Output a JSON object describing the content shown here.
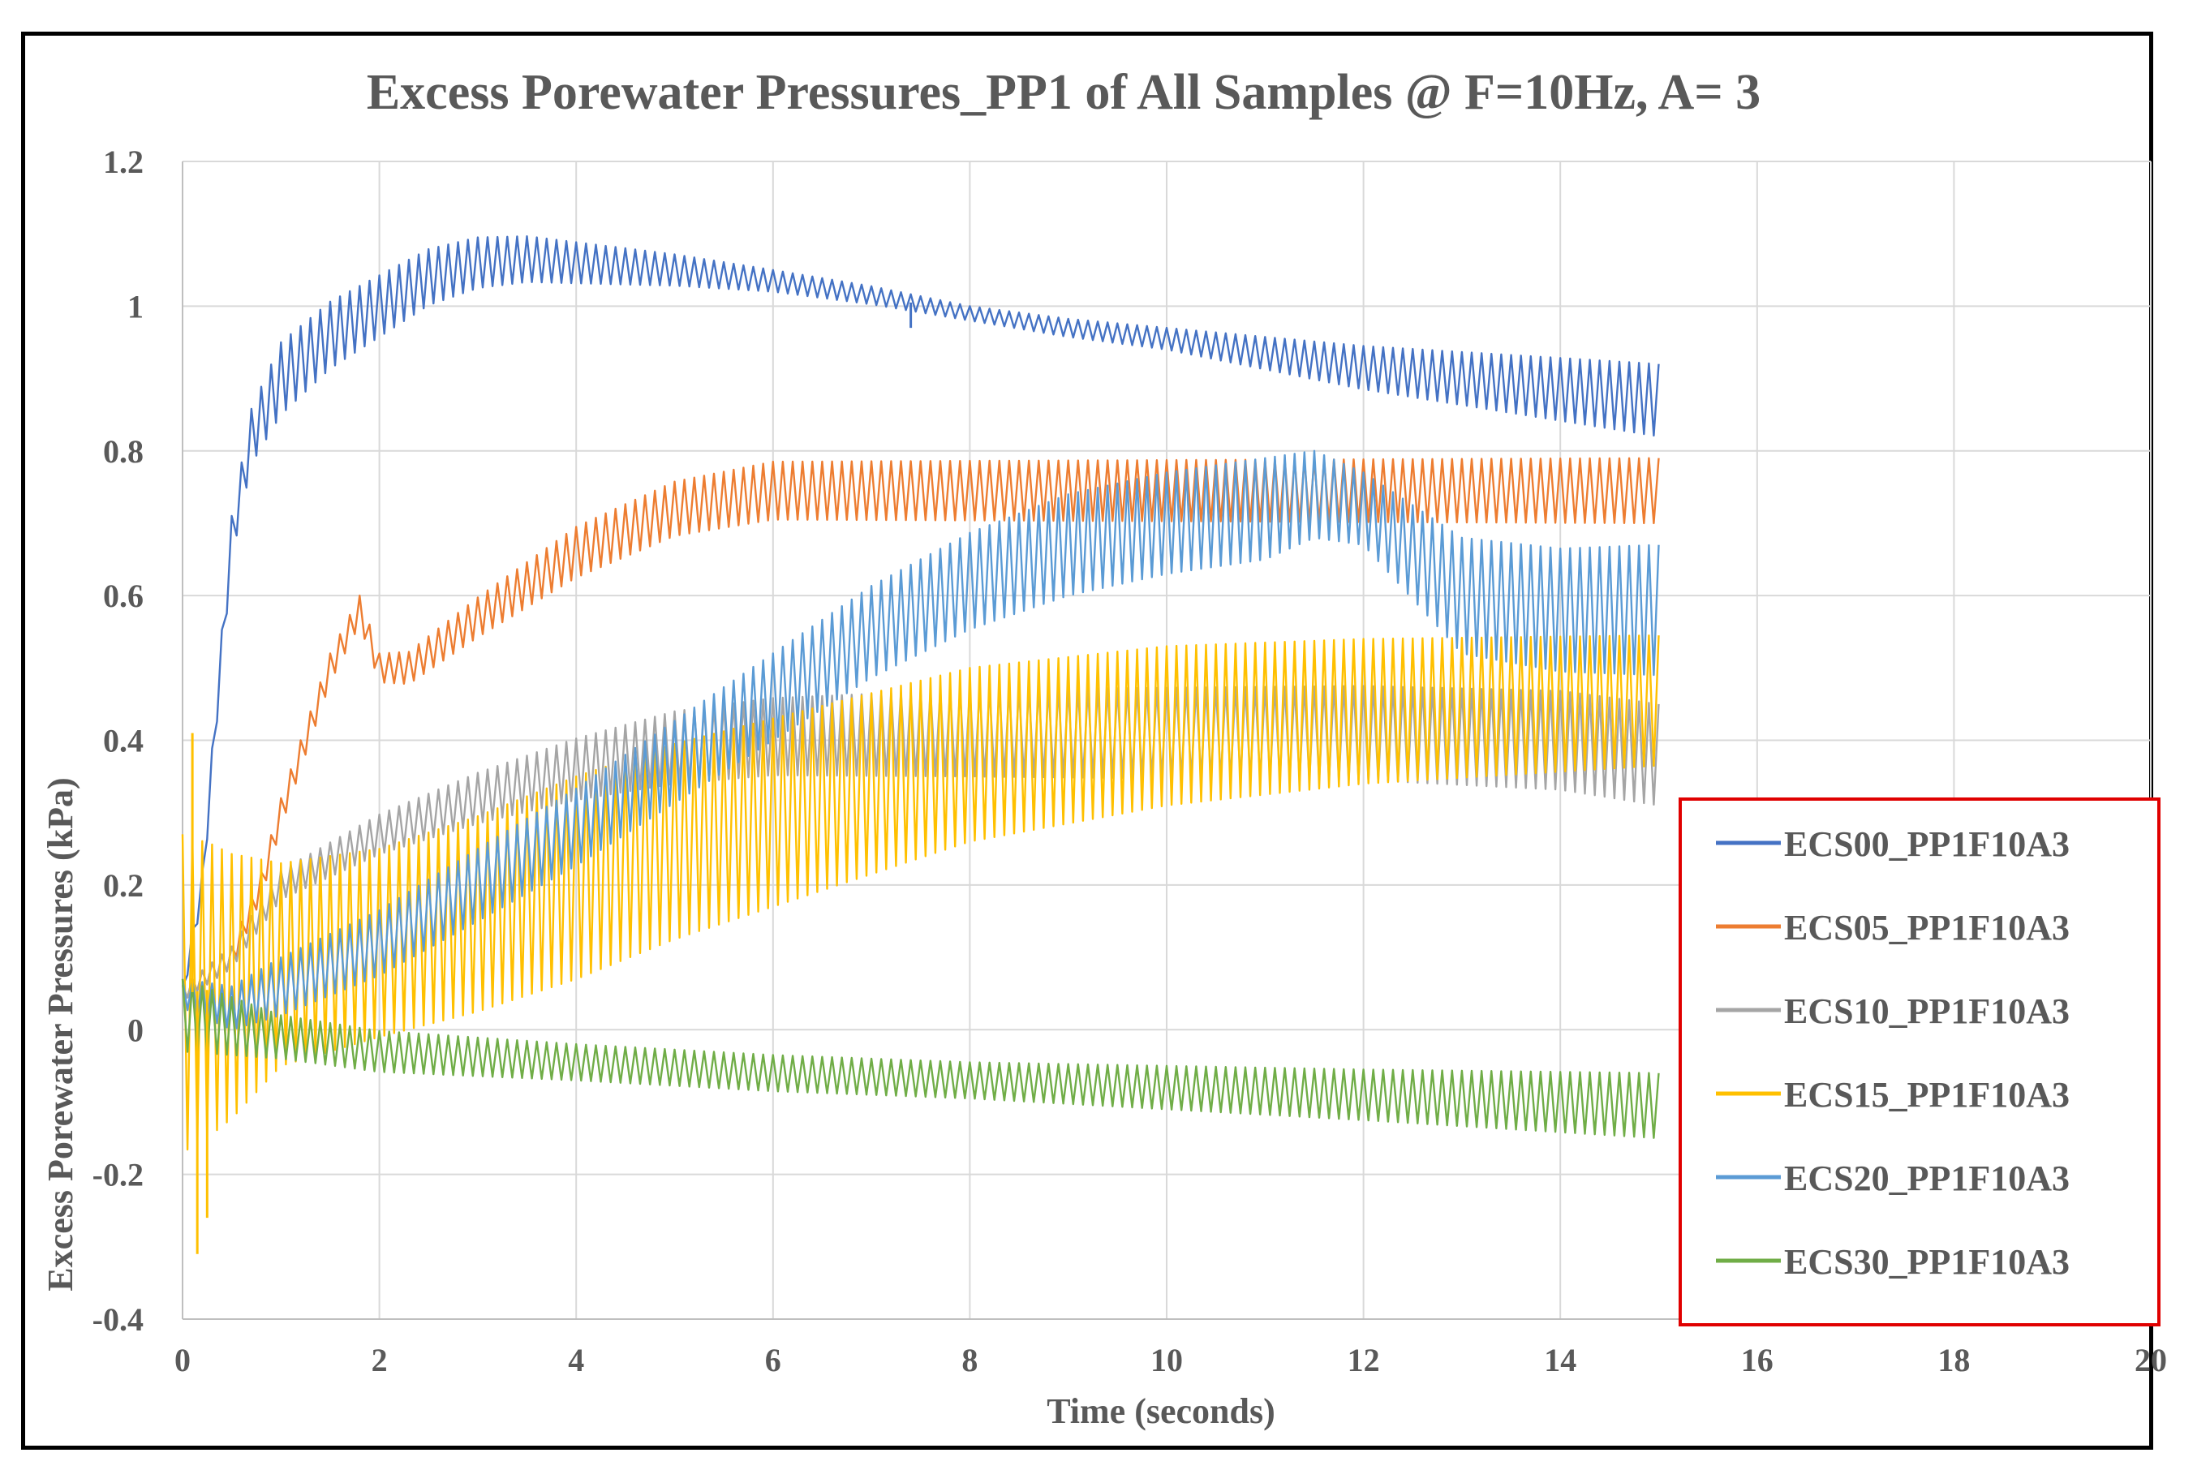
{
  "chart_data": {
    "type": "line",
    "title": "Excess Porewater Pressures_PP1 of All Samples @ F=10Hz, A= 3",
    "xlabel": "Time (seconds)",
    "ylabel": "Excess Porewater Pressures (kPa)",
    "xlim": [
      0,
      20
    ],
    "ylim": [
      -0.4,
      1.2
    ],
    "x_ticks": [
      0,
      2,
      4,
      6,
      8,
      10,
      12,
      14,
      16,
      18,
      20
    ],
    "y_ticks": [
      1.2,
      1,
      0.8,
      0.6,
      0.4,
      0.2,
      0,
      -0.2,
      -0.4
    ],
    "y_tick_labels": [
      "1.2",
      "1",
      "0.8",
      "0.6",
      "0.4",
      "0.2",
      "0",
      "-0.2",
      "-0.4"
    ],
    "grid": true,
    "legend_position": "bottom-right",
    "legend_box_color": "#e00000",
    "series": [
      {
        "name": "ECS00_PP1F10A3",
        "color": "#4472c4",
        "center": [
          [
            0,
            0.05
          ],
          [
            0.2,
            0.2
          ],
          [
            0.35,
            0.45
          ],
          [
            0.5,
            0.68
          ],
          [
            0.7,
            0.82
          ],
          [
            1,
            0.9
          ],
          [
            1.5,
            0.96
          ],
          [
            2,
            1.0
          ],
          [
            2.5,
            1.04
          ],
          [
            3,
            1.06
          ],
          [
            3.5,
            1.065
          ],
          [
            4,
            1.06
          ],
          [
            5,
            1.05
          ],
          [
            6,
            1.035
          ],
          [
            7,
            1.015
          ],
          [
            8,
            0.99
          ],
          [
            9,
            0.97
          ],
          [
            10,
            0.955
          ],
          [
            11,
            0.935
          ],
          [
            12,
            0.915
          ],
          [
            13,
            0.9
          ],
          [
            14,
            0.885
          ],
          [
            15,
            0.87
          ]
        ],
        "amplitude": [
          [
            0,
            0.01
          ],
          [
            0.5,
            0.03
          ],
          [
            1,
            0.05
          ],
          [
            3,
            0.035
          ],
          [
            6,
            0.015
          ],
          [
            8,
            0.01
          ],
          [
            10,
            0.015
          ],
          [
            12,
            0.03
          ],
          [
            15,
            0.05
          ]
        ]
      },
      {
        "name": "ECS05_PP1F10A3",
        "color": "#ed7d31",
        "center": [
          [
            0,
            0.05
          ],
          [
            0.5,
            0.1
          ],
          [
            0.8,
            0.2
          ],
          [
            1,
            0.3
          ],
          [
            1.3,
            0.42
          ],
          [
            1.5,
            0.5
          ],
          [
            1.8,
            0.58
          ],
          [
            2,
            0.5
          ],
          [
            2.3,
            0.5
          ],
          [
            3,
            0.57
          ],
          [
            4,
            0.66
          ],
          [
            5,
            0.72
          ],
          [
            6,
            0.745
          ],
          [
            8,
            0.745
          ],
          [
            10,
            0.745
          ],
          [
            12,
            0.745
          ],
          [
            15,
            0.745
          ]
        ],
        "amplitude": [
          [
            0,
            0.01
          ],
          [
            1,
            0.02
          ],
          [
            2,
            0.02
          ],
          [
            4,
            0.035
          ],
          [
            6,
            0.04
          ],
          [
            15,
            0.045
          ]
        ]
      },
      {
        "name": "ECS10_PP1F10A3",
        "color": "#a5a5a5",
        "center": [
          [
            0,
            0.05
          ],
          [
            0.5,
            0.1
          ],
          [
            1,
            0.2
          ],
          [
            2,
            0.27
          ],
          [
            3,
            0.32
          ],
          [
            4,
            0.36
          ],
          [
            5,
            0.39
          ],
          [
            6,
            0.405
          ],
          [
            8,
            0.41
          ],
          [
            10,
            0.41
          ],
          [
            12,
            0.41
          ],
          [
            14,
            0.4
          ],
          [
            15,
            0.38
          ]
        ],
        "amplitude": [
          [
            0,
            0.01
          ],
          [
            1,
            0.02
          ],
          [
            3,
            0.035
          ],
          [
            5,
            0.05
          ],
          [
            8,
            0.06
          ],
          [
            12,
            0.065
          ],
          [
            15,
            0.07
          ]
        ]
      },
      {
        "name": "ECS15_PP1F10A3",
        "color": "#ffc000",
        "center": [
          [
            0,
            0.05
          ],
          [
            0.5,
            0.06
          ],
          [
            1,
            0.09
          ],
          [
            2,
            0.12
          ],
          [
            3,
            0.16
          ],
          [
            4,
            0.21
          ],
          [
            5,
            0.26
          ],
          [
            6,
            0.3
          ],
          [
            7,
            0.34
          ],
          [
            8,
            0.38
          ],
          [
            9,
            0.4
          ],
          [
            10,
            0.42
          ],
          [
            12,
            0.44
          ],
          [
            14,
            0.45
          ],
          [
            15,
            0.455
          ]
        ],
        "amplitude": [
          [
            0,
            0.22
          ],
          [
            0.3,
            0.2
          ],
          [
            1,
            0.14
          ],
          [
            2,
            0.13
          ],
          [
            4,
            0.14
          ],
          [
            6,
            0.13
          ],
          [
            8,
            0.12
          ],
          [
            10,
            0.11
          ],
          [
            12,
            0.1
          ],
          [
            15,
            0.09
          ]
        ]
      },
      {
        "name": "ECS20_PP1F10A3",
        "color": "#5b9bd5",
        "center": [
          [
            0,
            0.05
          ],
          [
            0.5,
            0.03
          ],
          [
            1,
            0.06
          ],
          [
            2,
            0.12
          ],
          [
            3,
            0.2
          ],
          [
            4,
            0.28
          ],
          [
            5,
            0.37
          ],
          [
            6,
            0.46
          ],
          [
            7,
            0.55
          ],
          [
            8,
            0.62
          ],
          [
            9,
            0.67
          ],
          [
            10,
            0.7
          ],
          [
            11,
            0.72
          ],
          [
            11.5,
            0.74
          ],
          [
            12,
            0.72
          ],
          [
            12.5,
            0.66
          ],
          [
            13,
            0.6
          ],
          [
            14,
            0.58
          ],
          [
            15,
            0.58
          ]
        ],
        "amplitude": [
          [
            0,
            0.02
          ],
          [
            1,
            0.04
          ],
          [
            3,
            0.05
          ],
          [
            6,
            0.06
          ],
          [
            9,
            0.07
          ],
          [
            11,
            0.07
          ],
          [
            12,
            0.05
          ],
          [
            13,
            0.08
          ],
          [
            15,
            0.09
          ]
        ]
      },
      {
        "name": "ECS30_PP1F10A3",
        "color": "#70ad47",
        "center": [
          [
            0,
            0.02
          ],
          [
            1,
            -0.01
          ],
          [
            2,
            -0.03
          ],
          [
            4,
            -0.045
          ],
          [
            6,
            -0.06
          ],
          [
            8,
            -0.07
          ],
          [
            10,
            -0.08
          ],
          [
            12,
            -0.09
          ],
          [
            14,
            -0.1
          ],
          [
            15,
            -0.105
          ]
        ],
        "amplitude": [
          [
            0,
            0.05
          ],
          [
            1,
            0.03
          ],
          [
            4,
            0.025
          ],
          [
            8,
            0.025
          ],
          [
            12,
            0.035
          ],
          [
            15,
            0.045
          ]
        ]
      }
    ],
    "spikes": [
      {
        "series": 0,
        "x": 7.4,
        "y": 0.97
      },
      {
        "series": 3,
        "x": 0.1,
        "y": 0.41
      },
      {
        "series": 3,
        "x": 0.15,
        "y": -0.31
      },
      {
        "series": 3,
        "x": 0.25,
        "y": -0.26
      }
    ]
  }
}
